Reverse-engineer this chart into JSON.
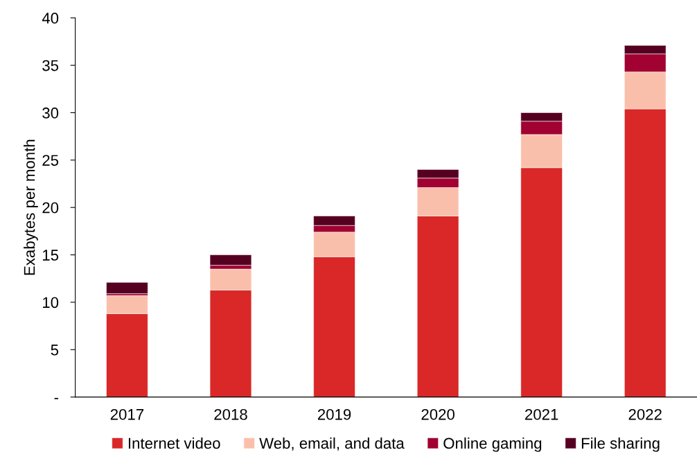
{
  "chart_data": {
    "type": "bar",
    "stacked": true,
    "ylabel": "Exabytes per month",
    "categories": [
      "2017",
      "2018",
      "2019",
      "2020",
      "2021",
      "2022"
    ],
    "series": [
      {
        "name": "Internet video",
        "color": "#d92827",
        "values": [
          8.8,
          11.3,
          14.8,
          19.1,
          24.2,
          30.4
        ]
      },
      {
        "name": "Web, email, and data",
        "color": "#fabfab",
        "values": [
          1.9,
          2.2,
          2.6,
          3.0,
          3.5,
          3.9
        ]
      },
      {
        "name": "Online gaming",
        "color": "#a10232",
        "values": [
          0.2,
          0.4,
          0.7,
          1.0,
          1.4,
          1.9
        ]
      },
      {
        "name": "File sharing",
        "color": "#560021",
        "values": [
          1.2,
          1.1,
          1.0,
          0.9,
          0.9,
          0.9
        ]
      }
    ],
    "ylim": [
      0,
      40
    ],
    "yticks": [
      {
        "value": 0,
        "label": "-"
      },
      5,
      10,
      15,
      20,
      25,
      30,
      35,
      40
    ],
    "grid": false,
    "legend": "bottom"
  }
}
